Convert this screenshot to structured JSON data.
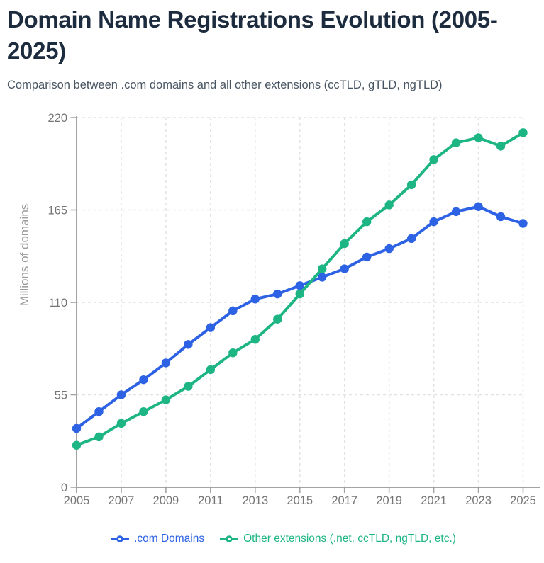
{
  "header": {
    "title": "Domain Name Registrations Evolution (2005-2025)",
    "subtitle": "Comparison between .com domains and all other extensions (ccTLD, gTLD, ngTLD)"
  },
  "chart_data": {
    "type": "line",
    "title": "Domain Name Registrations Evolution (2005-2025)",
    "xlabel": "",
    "ylabel": "Millions of domains",
    "x": [
      2005,
      2006,
      2007,
      2008,
      2009,
      2010,
      2011,
      2012,
      2013,
      2014,
      2015,
      2016,
      2017,
      2018,
      2019,
      2020,
      2021,
      2022,
      2023,
      2024,
      2025
    ],
    "xticks": [
      2005,
      2007,
      2009,
      2011,
      2013,
      2015,
      2017,
      2019,
      2021,
      2023,
      2025
    ],
    "yticks": [
      0,
      55,
      110,
      165,
      220
    ],
    "ylim": [
      0,
      220
    ],
    "grid": true,
    "grid_style": "dashed",
    "legend_position": "bottom",
    "series": [
      {
        "name": ".com Domains",
        "color": "#2d62e5",
        "marker": "circle",
        "values": [
          35,
          45,
          55,
          64,
          74,
          85,
          95,
          105,
          112,
          115,
          120,
          125,
          130,
          137,
          142,
          148,
          158,
          164,
          167,
          161,
          157
        ]
      },
      {
        "name": "Other extensions (.net, ccTLD, ngTLD, etc.)",
        "color": "#1eb585",
        "marker": "circle",
        "values": [
          25,
          30,
          38,
          45,
          52,
          60,
          70,
          80,
          88,
          100,
          115,
          130,
          145,
          158,
          168,
          180,
          195,
          205,
          208,
          203,
          211
        ]
      }
    ]
  },
  "colors": {
    "title": "#1d2b3e",
    "subtitle": "#485562",
    "axis": "#a3a3a3",
    "tick_label": "#757575",
    "grid": "#e2e2e2",
    "axis_title": "#9b9b9b",
    "background": "#ffffff"
  }
}
